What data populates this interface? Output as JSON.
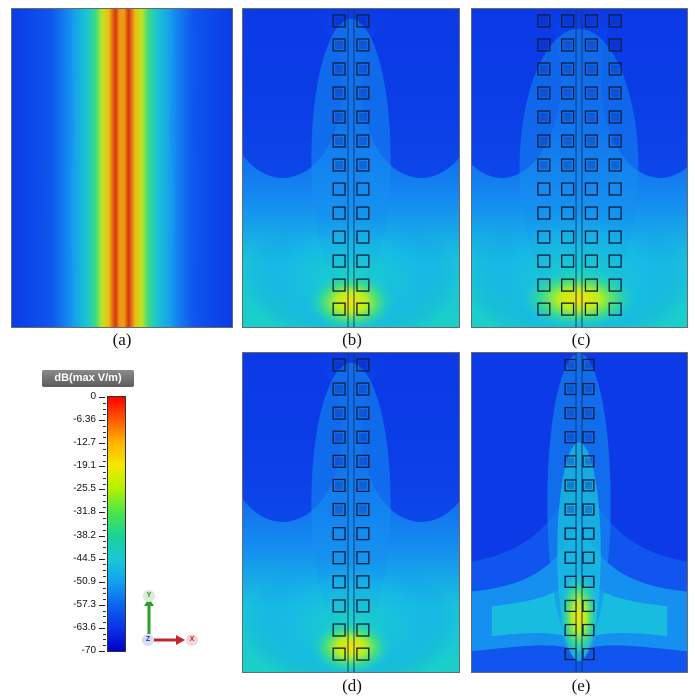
{
  "panels": [
    {
      "id": "a",
      "caption": "(a)"
    },
    {
      "id": "b",
      "caption": "(b)"
    },
    {
      "id": "c",
      "caption": "(c)"
    },
    {
      "id": "d",
      "caption": "(d)"
    },
    {
      "id": "e",
      "caption": "(e)"
    }
  ],
  "colorbar": {
    "title": "dB(max V/m)",
    "ticks": [
      "0",
      "-6.36",
      "-12.7",
      "-19.1",
      "-25.5",
      "-31.8",
      "-38.2",
      "-44.5",
      "-50.9",
      "-57.3",
      "-63.6",
      "-70"
    ],
    "colors": [
      "#ff0000",
      "#ff5a00",
      "#ffb400",
      "#f5e800",
      "#b4f000",
      "#50e646",
      "#18d29a",
      "#18c8d8",
      "#12a0f0",
      "#0a64f0",
      "#0a32e6",
      "#0000c8"
    ]
  },
  "axes": {
    "y_label": "Y",
    "z_label": "Z",
    "x_label": "X"
  }
}
